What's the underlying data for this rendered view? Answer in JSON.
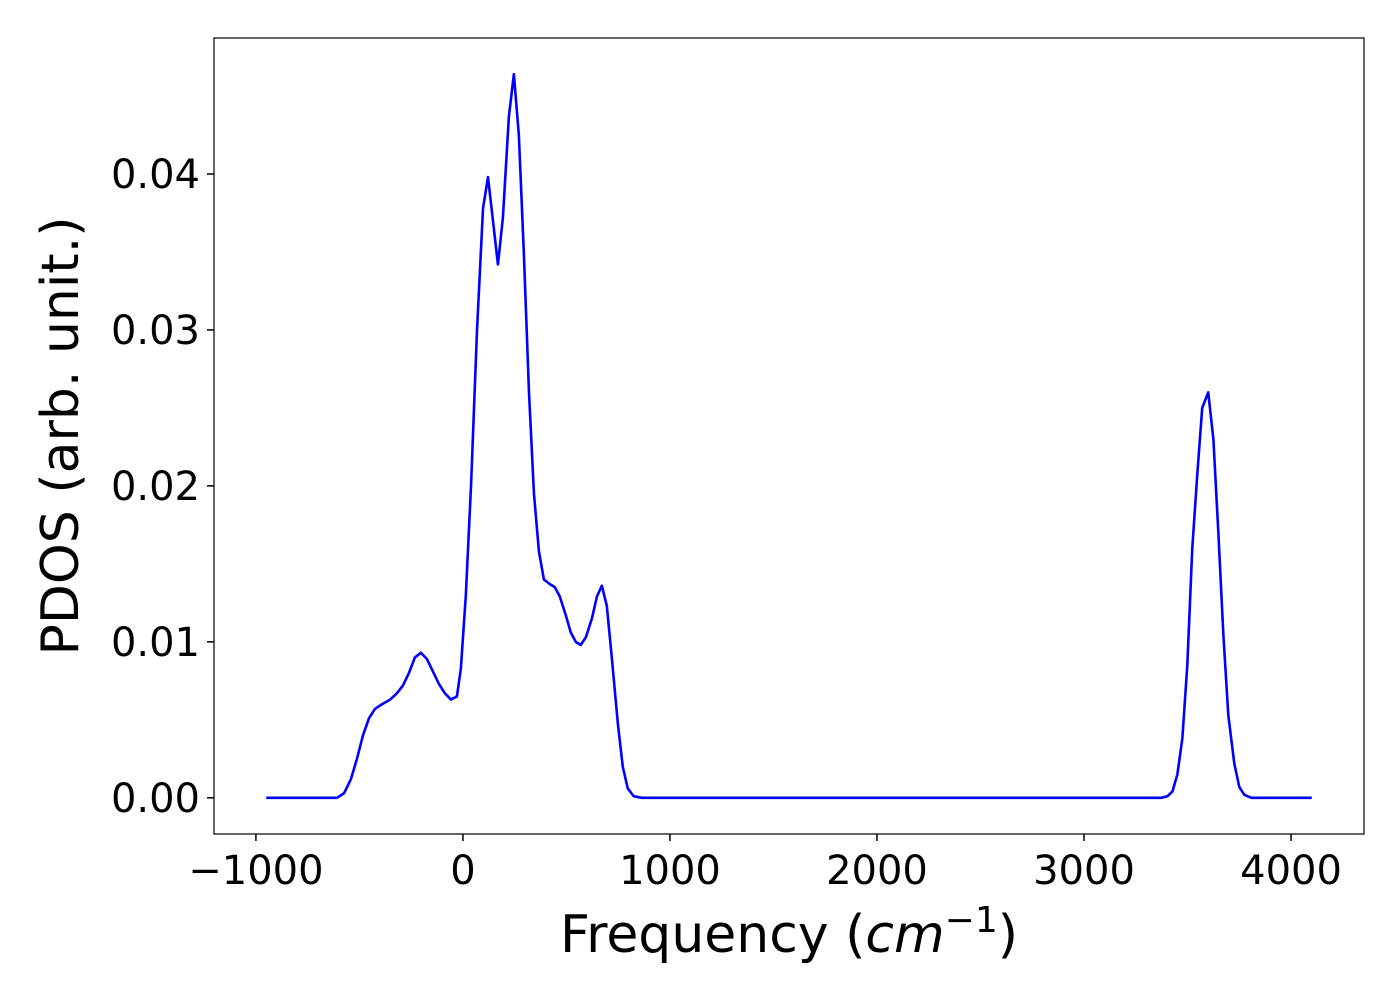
{
  "chart_data": {
    "type": "line",
    "xlabel": [
      "Frequency (",
      "cm",
      "−1",
      ")"
    ],
    "ylabel": "PDOS (arb. unit.)",
    "x": [
      -950,
      -608,
      -574,
      -541,
      -512,
      -483,
      -454,
      -425,
      -391,
      -352,
      -319,
      -290,
      -261,
      -232,
      -203,
      -174,
      -145,
      -116,
      -87,
      -58,
      -29,
      -10,
      14,
      39,
      68,
      97,
      121,
      145,
      169,
      193,
      222,
      246,
      270,
      294,
      319,
      343,
      367,
      391,
      420,
      444,
      468,
      497,
      521,
      545,
      569,
      594,
      623,
      647,
      671,
      695,
      719,
      748,
      772,
      796,
      825,
      864,
      3374,
      3403,
      3427,
      3451,
      3475,
      3499,
      3523,
      3547,
      3571,
      3600,
      3625,
      3649,
      3673,
      3697,
      3726,
      3750,
      3774,
      3808,
      4100
    ],
    "series": [
      {
        "color": "#0000ff",
        "values": [
          0,
          0,
          0.0003,
          0.0012,
          0.0025,
          0.004,
          0.0051,
          0.0057,
          0.006,
          0.0063,
          0.0067,
          0.0072,
          0.008,
          0.009,
          0.0093,
          0.0089,
          0.0081,
          0.0073,
          0.0067,
          0.0063,
          0.0065,
          0.0083,
          0.013,
          0.02,
          0.03,
          0.0378,
          0.0398,
          0.037,
          0.0342,
          0.0372,
          0.0437,
          0.0464,
          0.0425,
          0.035,
          0.026,
          0.0195,
          0.0158,
          0.014,
          0.0137,
          0.0135,
          0.0129,
          0.0117,
          0.0106,
          0.01,
          0.0098,
          0.0103,
          0.0115,
          0.0129,
          0.0136,
          0.0123,
          0.009,
          0.0048,
          0.002,
          0.0006,
          0.0001,
          0,
          0,
          0.0001,
          0.0004,
          0.0015,
          0.0038,
          0.0085,
          0.016,
          0.0207,
          0.025,
          0.026,
          0.023,
          0.017,
          0.0105,
          0.0053,
          0.0022,
          0.0007,
          0.0002,
          0,
          0
        ]
      }
    ],
    "xlim": [
      -1202.5,
      4352.5
    ],
    "ylim": [
      -0.00232,
      0.04872
    ],
    "xticks": [
      {
        "value": -1000,
        "label": "−1000"
      },
      0,
      1000,
      2000,
      3000,
      4000
    ],
    "yticks": [
      {
        "value": 0,
        "label": "0.00"
      },
      {
        "value": 0.01,
        "label": "0.01"
      },
      {
        "value": 0.02,
        "label": "0.02"
      },
      {
        "value": 0.03,
        "label": "0.03"
      },
      {
        "value": 0.04,
        "label": "0.04"
      }
    ],
    "grid": false
  }
}
